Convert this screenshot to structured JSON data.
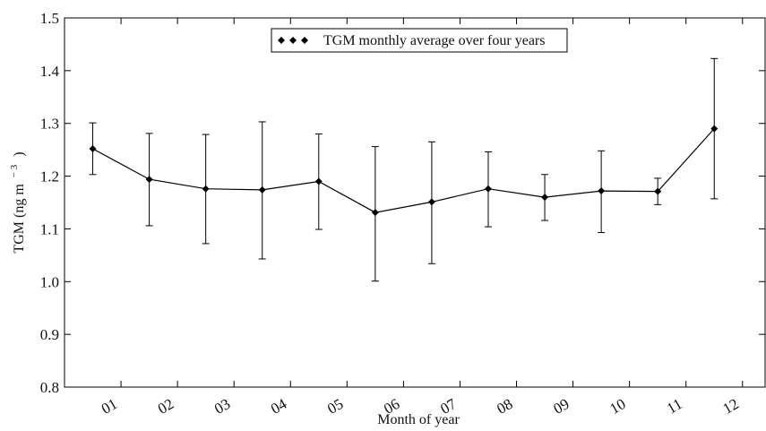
{
  "chart_data": {
    "type": "line",
    "xlabel": "Month of year",
    "ylabel_main": "TGM (ng m",
    "ylabel_exp": "− 3",
    "ylabel_close": ")",
    "ylim": [
      0.8,
      1.5
    ],
    "yticks": [
      0.8,
      0.9,
      1.0,
      1.1,
      1.2,
      1.3,
      1.4,
      1.5
    ],
    "ytick_labels": [
      "0.8",
      "0.9",
      "1.0",
      "1.1",
      "1.2",
      "1.3",
      "1.4",
      "1.5"
    ],
    "xlim": [
      0,
      12.4
    ],
    "xticks": [
      1,
      2,
      3,
      4,
      5,
      6,
      7,
      8,
      9,
      10,
      11,
      12
    ],
    "xtick_labels": [
      "01",
      "02",
      "03",
      "04",
      "05",
      "06",
      "07",
      "08",
      "09",
      "10",
      "11",
      "12"
    ],
    "grid": false,
    "legend_position": "top-center",
    "series": [
      {
        "name": "TGM monthly average over four years",
        "marker": "diamond",
        "color": "#000000",
        "x": [
          0.5,
          1.5,
          2.5,
          3.5,
          4.5,
          5.5,
          6.5,
          7.5,
          8.5,
          9.5,
          10.5,
          11.5
        ],
        "values": [
          1.252,
          1.194,
          1.176,
          1.174,
          1.19,
          1.131,
          1.151,
          1.176,
          1.16,
          1.172,
          1.171,
          1.29
        ],
        "err_low": [
          1.203,
          1.106,
          1.072,
          1.043,
          1.099,
          1.001,
          1.034,
          1.104,
          1.116,
          1.093,
          1.146,
          1.157
        ],
        "err_high": [
          1.301,
          1.281,
          1.279,
          1.303,
          1.28,
          1.256,
          1.265,
          1.246,
          1.203,
          1.248,
          1.196,
          1.423
        ]
      }
    ]
  }
}
